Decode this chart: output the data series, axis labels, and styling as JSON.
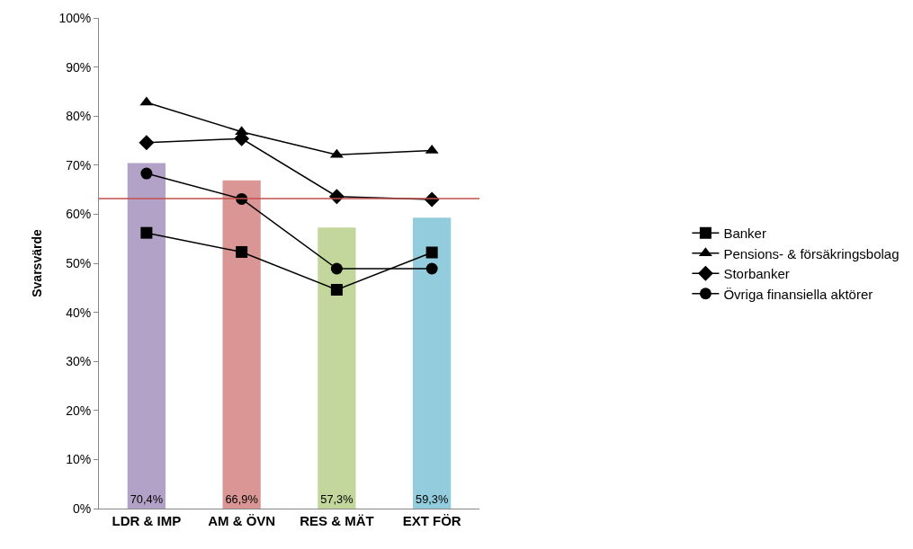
{
  "chart_data": {
    "type": "bar",
    "ylabel": "Svarsvärde",
    "categories": [
      "LDR & IMP",
      "AM & ÖVN",
      "RES & MÄT",
      "EXT FÖR"
    ],
    "series": [
      {
        "colors": [
          "#b3a2c7",
          "#d99694",
          "#c3d69b",
          "#93cddd"
        ],
        "values": [
          70.4,
          66.9,
          57.3,
          59.3
        ],
        "value_labels": [
          "70,4%",
          "66,9%",
          "57,3%",
          "59,3%"
        ]
      },
      {
        "type": "line",
        "name": "Banker",
        "color": "#000000",
        "marker": "square",
        "values": [
          56.2,
          52.3,
          44.6,
          52.2
        ]
      },
      {
        "type": "line",
        "name": "Pensions- & försäkringsbolag",
        "color": "#000000",
        "marker": "triangle",
        "values": [
          82.8,
          76.8,
          72.1,
          73.0
        ]
      },
      {
        "type": "line",
        "name": "Storbanker",
        "color": "#000000",
        "marker": "diamond",
        "values": [
          74.6,
          75.4,
          63.6,
          63.0
        ]
      },
      {
        "type": "line",
        "name": "Övriga finansiella aktörer",
        "color": "#000000",
        "marker": "circle",
        "values": [
          68.3,
          63.1,
          48.9,
          48.9
        ]
      }
    ],
    "ylim": [
      0,
      100
    ],
    "yticks": [
      {
        "value": 0,
        "label": "0%"
      },
      {
        "value": 10,
        "label": "10%"
      },
      {
        "value": 20,
        "label": "20%"
      },
      {
        "value": 30,
        "label": "30%"
      },
      {
        "value": 40,
        "label": "40%"
      },
      {
        "value": 50,
        "label": "50%"
      },
      {
        "value": 60,
        "label": "60%"
      },
      {
        "value": 70,
        "label": "70%"
      },
      {
        "value": 80,
        "label": "80%"
      },
      {
        "value": 90,
        "label": "90%"
      },
      {
        "value": 100,
        "label": "100%"
      }
    ],
    "ref_lines": [
      {
        "axis": "y",
        "value": 63.2,
        "color": "#c0504d"
      }
    ],
    "legend": "right"
  }
}
